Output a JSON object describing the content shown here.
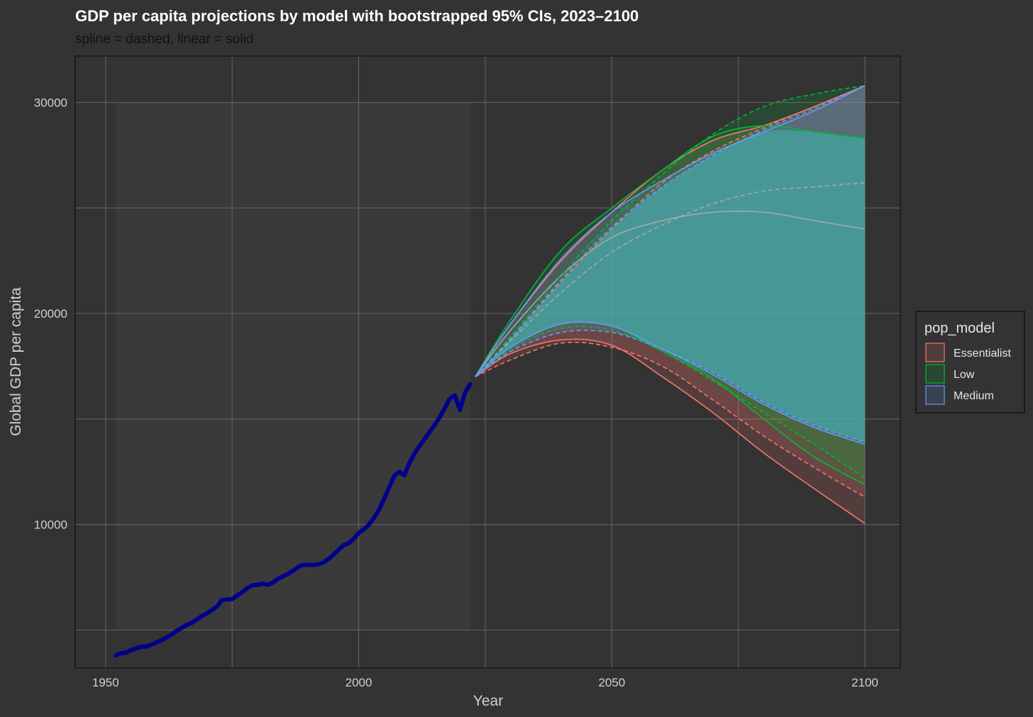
{
  "chart_data": {
    "type": "line",
    "title": "GDP per capita projections by model with bootstrapped 95% CIs, 2023–2100",
    "subtitle": "spline = dashed, linear = solid",
    "xlabel": "Year",
    "ylabel": "Global GDP per capita",
    "xlim": [
      1944,
      2107
    ],
    "ylim": [
      3200,
      32200
    ],
    "x_ticks": [
      1950,
      2000,
      2050,
      2100
    ],
    "y_ticks": [
      10000,
      20000,
      30000
    ],
    "x_minor": [
      1975,
      2025,
      2075
    ],
    "y_minor": [
      5000,
      15000,
      25000
    ],
    "grid": true,
    "legend": {
      "title": "pop_model",
      "position": "right",
      "entries": [
        "Essentialist",
        "Low",
        "Medium"
      ]
    },
    "colors": {
      "background": "#333333",
      "grid": "#5e5e5e",
      "history": "#00008b",
      "Essentialist": "#f8766d",
      "Low": "#00ba38",
      "Medium": "#619cff",
      "central": "#a8a8a8",
      "band_fill": "#3fb8b8"
    },
    "history": {
      "x": [
        1952,
        1953,
        1954,
        1955,
        1956,
        1957,
        1958,
        1959,
        1960,
        1961,
        1962,
        1963,
        1964,
        1965,
        1966,
        1967,
        1968,
        1969,
        1970,
        1971,
        1972,
        1973,
        1974,
        1975,
        1976,
        1977,
        1978,
        1979,
        1980,
        1981,
        1982,
        1983,
        1984,
        1985,
        1986,
        1987,
        1988,
        1989,
        1990,
        1991,
        1992,
        1993,
        1994,
        1995,
        1996,
        1997,
        1998,
        1999,
        2000,
        2001,
        2002,
        2003,
        2004,
        2005,
        2006,
        2007,
        2008,
        2009,
        2010,
        2011,
        2012,
        2013,
        2014,
        2015,
        2016,
        2017,
        2018,
        2019,
        2020,
        2021,
        2022
      ],
      "y": [
        3800,
        3900,
        3930,
        4050,
        4130,
        4210,
        4220,
        4300,
        4420,
        4510,
        4650,
        4780,
        4960,
        5100,
        5240,
        5340,
        5500,
        5660,
        5790,
        5940,
        6120,
        6420,
        6450,
        6470,
        6640,
        6800,
        6990,
        7120,
        7140,
        7200,
        7150,
        7240,
        7420,
        7540,
        7660,
        7810,
        7980,
        8100,
        8090,
        8080,
        8120,
        8200,
        8360,
        8570,
        8790,
        9020,
        9110,
        9320,
        9600,
        9770,
        9990,
        10300,
        10700,
        11200,
        11750,
        12300,
        12500,
        12330,
        12900,
        13350,
        13720,
        14050,
        14380,
        14720,
        15080,
        15520,
        15970,
        16120,
        15430,
        16240,
        16650
      ]
    },
    "x": [
      2023,
      2030,
      2040,
      2050,
      2060,
      2070,
      2080,
      2090,
      2100
    ],
    "series": [
      {
        "name": "Essentialist",
        "method": "linear",
        "y_upper": [
          17000,
          19500,
          22500,
          24800,
          26800,
          28200,
          28900,
          29800,
          30800
        ],
        "y_lower": [
          17000,
          18100,
          18750,
          18500,
          17000,
          15300,
          13400,
          11700,
          10050
        ]
      },
      {
        "name": "Essentialist",
        "method": "spline",
        "y_upper": [
          17000,
          18800,
          21500,
          24000,
          26200,
          27700,
          28800,
          29800,
          30800
        ],
        "y_lower": [
          17000,
          17800,
          18600,
          18400,
          17500,
          15900,
          14200,
          12700,
          11300
        ]
      },
      {
        "name": "Low",
        "method": "linear",
        "y_upper": [
          17000,
          19700,
          23000,
          25000,
          26800,
          28400,
          28900,
          28600,
          28300
        ],
        "y_lower": [
          17000,
          18400,
          19500,
          19400,
          18200,
          16900,
          15000,
          13200,
          11900
        ]
      },
      {
        "name": "Low",
        "method": "spline",
        "y_upper": [
          17000,
          18900,
          21800,
          24400,
          26600,
          28500,
          29800,
          30400,
          30800
        ],
        "y_lower": [
          17000,
          18300,
          19300,
          19200,
          18200,
          16800,
          15300,
          13800,
          12200
        ]
      },
      {
        "name": "Medium",
        "method": "linear",
        "y_upper": [
          17000,
          19500,
          22600,
          24800,
          26300,
          27600,
          28600,
          29600,
          30800
        ],
        "y_lower": [
          17000,
          18400,
          19500,
          19400,
          18300,
          17100,
          15700,
          14600,
          13800
        ]
      },
      {
        "name": "Medium",
        "method": "spline",
        "y_upper": [
          17000,
          18800,
          21600,
          24100,
          26000,
          27500,
          28700,
          29700,
          30800
        ],
        "y_lower": [
          17000,
          18200,
          19100,
          19100,
          18300,
          17200,
          15800,
          14700,
          13900
        ]
      }
    ],
    "central_lines": [
      {
        "method": "linear",
        "y": [
          17000,
          19200,
          21800,
          23600,
          24400,
          24800,
          24800,
          24400,
          24000
        ]
      },
      {
        "method": "spline",
        "y": [
          17000,
          18700,
          21000,
          22900,
          24200,
          25200,
          25800,
          26000,
          26200
        ]
      }
    ]
  }
}
